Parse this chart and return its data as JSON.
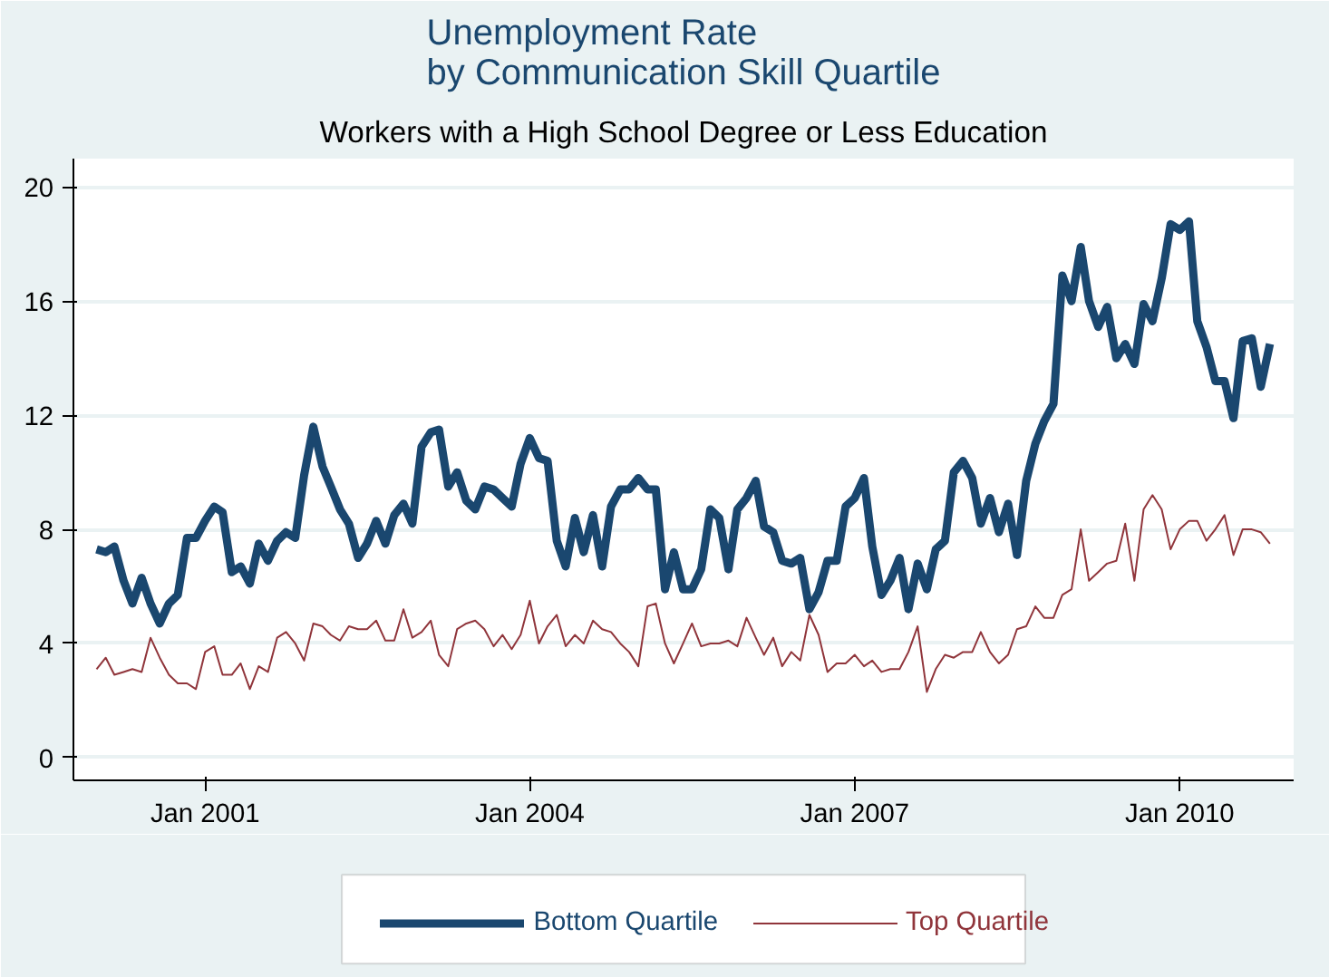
{
  "chart_data": {
    "type": "line",
    "title": "Unemployment Rate\nby Communication Skill Quartile",
    "subtitle": "Workers with a High School Degree or Less Education",
    "x": [
      "2000-01",
      "2000-02",
      "2000-03",
      "2000-04",
      "2000-05",
      "2000-06",
      "2000-07",
      "2000-08",
      "2000-09",
      "2000-10",
      "2000-11",
      "2000-12",
      "2001-01",
      "2001-02",
      "2001-03",
      "2001-04",
      "2001-05",
      "2001-06",
      "2001-07",
      "2001-08",
      "2001-09",
      "2001-10",
      "2001-11",
      "2001-12",
      "2002-01",
      "2002-02",
      "2002-03",
      "2002-04",
      "2002-05",
      "2002-06",
      "2002-07",
      "2002-08",
      "2002-09",
      "2002-10",
      "2002-11",
      "2002-12",
      "2003-01",
      "2003-02",
      "2003-03",
      "2003-04",
      "2003-05",
      "2003-06",
      "2003-07",
      "2003-08",
      "2003-09",
      "2003-10",
      "2003-11",
      "2003-12",
      "2004-01",
      "2004-02",
      "2004-03",
      "2004-04",
      "2004-05",
      "2004-06",
      "2004-07",
      "2004-08",
      "2004-09",
      "2004-10",
      "2004-11",
      "2004-12",
      "2005-01",
      "2005-02",
      "2005-03",
      "2005-04",
      "2005-05",
      "2005-06",
      "2005-07",
      "2005-08",
      "2005-09",
      "2005-10",
      "2005-11",
      "2005-12",
      "2006-01",
      "2006-02",
      "2006-03",
      "2006-04",
      "2006-05",
      "2006-06",
      "2006-07",
      "2006-08",
      "2006-09",
      "2006-10",
      "2006-11",
      "2006-12",
      "2007-01",
      "2007-02",
      "2007-03",
      "2007-04",
      "2007-05",
      "2007-06",
      "2007-07",
      "2007-08",
      "2007-09",
      "2007-10",
      "2007-11",
      "2007-12",
      "2008-01",
      "2008-02",
      "2008-03",
      "2008-04",
      "2008-05",
      "2008-06",
      "2008-07",
      "2008-08",
      "2008-09",
      "2008-10",
      "2008-11",
      "2008-12",
      "2009-01",
      "2009-02",
      "2009-03",
      "2009-04",
      "2009-05",
      "2009-06",
      "2009-07",
      "2009-08",
      "2009-09",
      "2009-10",
      "2009-11",
      "2009-12",
      "2010-01",
      "2010-02",
      "2010-03",
      "2010-04",
      "2010-05",
      "2010-06",
      "2010-07",
      "2010-08",
      "2010-09",
      "2010-10",
      "2010-11"
    ],
    "series": [
      {
        "name": "Bottom Quartile",
        "color": "#1a476f",
        "values": [
          7.3,
          7.2,
          7.4,
          6.2,
          5.4,
          6.3,
          5.4,
          4.7,
          5.4,
          5.7,
          7.7,
          7.7,
          8.3,
          8.8,
          8.6,
          6.5,
          6.7,
          6.1,
          7.5,
          6.9,
          7.6,
          7.9,
          7.7,
          9.9,
          11.6,
          10.2,
          9.5,
          8.7,
          8.2,
          7.0,
          7.5,
          8.3,
          7.5,
          8.5,
          8.9,
          8.2,
          10.9,
          11.4,
          11.5,
          9.5,
          10.0,
          9.0,
          8.7,
          9.5,
          9.4,
          9.1,
          8.8,
          10.3,
          11.2,
          10.5,
          10.4,
          7.6,
          6.7,
          8.4,
          7.2,
          8.5,
          6.7,
          8.8,
          9.4,
          9.4,
          9.8,
          9.4,
          9.4,
          5.9,
          7.2,
          5.9,
          5.9,
          6.6,
          8.7,
          8.4,
          6.6,
          8.7,
          9.1,
          9.7,
          8.1,
          7.9,
          6.9,
          6.8,
          7.0,
          5.2,
          5.8,
          6.9,
          6.9,
          8.8,
          9.1,
          9.8,
          7.4,
          5.7,
          6.2,
          7.0,
          5.2,
          6.8,
          5.9,
          7.3,
          7.6,
          10.0,
          10.4,
          9.8,
          8.2,
          9.1,
          7.9,
          8.9,
          7.1,
          9.7,
          11.0,
          11.8,
          12.4,
          16.9,
          16.0,
          17.9,
          16.0,
          15.1,
          15.8,
          14.0,
          14.5,
          13.8,
          15.9,
          15.3,
          16.8,
          18.7,
          18.5,
          18.8,
          15.3,
          14.4,
          13.2,
          13.2,
          11.9,
          14.6,
          14.7,
          13.0,
          14.5
        ]
      },
      {
        "name": "Top Quartile",
        "color": "#90353b",
        "values": [
          3.1,
          3.5,
          2.9,
          3.0,
          3.1,
          3.0,
          4.2,
          3.5,
          2.9,
          2.6,
          2.6,
          2.4,
          3.7,
          3.9,
          2.9,
          2.9,
          3.3,
          2.4,
          3.2,
          3.0,
          4.2,
          4.4,
          4.0,
          3.4,
          4.7,
          4.6,
          4.3,
          4.1,
          4.6,
          4.5,
          4.5,
          4.8,
          4.1,
          4.1,
          5.2,
          4.2,
          4.4,
          4.8,
          3.6,
          3.2,
          4.5,
          4.7,
          4.8,
          4.5,
          3.9,
          4.3,
          3.8,
          4.3,
          5.5,
          4.0,
          4.6,
          5.0,
          3.9,
          4.3,
          4.0,
          4.8,
          4.5,
          4.4,
          4.0,
          3.7,
          3.2,
          5.3,
          5.4,
          4.0,
          3.3,
          4.0,
          4.7,
          3.9,
          4.0,
          4.0,
          4.1,
          3.9,
          4.9,
          4.2,
          3.6,
          4.2,
          3.2,
          3.7,
          3.4,
          5.0,
          4.3,
          3.0,
          3.3,
          3.3,
          3.6,
          3.2,
          3.4,
          3.0,
          3.1,
          3.1,
          3.7,
          4.6,
          2.3,
          3.1,
          3.6,
          3.5,
          3.7,
          3.7,
          4.4,
          3.7,
          3.3,
          3.6,
          4.5,
          4.6,
          5.3,
          4.9,
          4.9,
          5.7,
          5.9,
          8.0,
          6.2,
          6.5,
          6.8,
          6.9,
          8.2,
          6.2,
          8.7,
          9.2,
          8.7,
          7.3,
          8.0,
          8.3,
          8.3,
          7.6,
          8.0,
          8.5,
          7.1,
          8.0,
          8.0,
          7.9,
          7.5
        ]
      }
    ],
    "xlim": [
      "1999-10-15",
      "2011-01-20"
    ],
    "xticks": [
      {
        "value": "2001-01",
        "label": "Jan 2001"
      },
      {
        "value": "2004-01",
        "label": "Jan 2004"
      },
      {
        "value": "2007-01",
        "label": "Jan 2007"
      },
      {
        "value": "2010-01",
        "label": "Jan 2010"
      }
    ],
    "ylim": [
      -0.8,
      21.0
    ],
    "yticks": [
      0,
      4,
      8,
      12,
      16,
      20
    ],
    "grid": "y",
    "legend": "bottom"
  }
}
